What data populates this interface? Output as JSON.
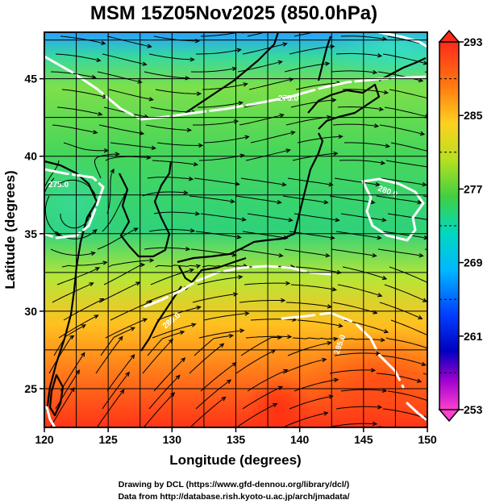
{
  "title": "MSM 15Z05Nov2025 (850.0hPa)",
  "x_label": "Longitude (degrees)",
  "y_label": "Latitude  (degrees)",
  "x_ticks": [
    "120",
    "125",
    "130",
    "135",
    "140",
    "145",
    "150"
  ],
  "y_ticks": [
    "25",
    "30",
    "35",
    "40",
    "45"
  ],
  "colorbar": {
    "ticks": [
      "293",
      "285",
      "277",
      "269",
      "261",
      "253"
    ],
    "min": 253,
    "max": 293
  },
  "contour_labels": [
    "285.0",
    "280.0",
    "280.0",
    "275.0",
    "275.0"
  ],
  "credits": {
    "line1": "Drawing by DCL (https://www.gfd-dennou.org/library/dcl/)",
    "line2": "Data from http://database.rish.kyoto-u.ac.jp/arch/jmadata/"
  },
  "chart_data": {
    "type": "heatmap",
    "variable": "temperature with wind streamlines",
    "xlim": [
      120,
      150
    ],
    "ylim": [
      22.5,
      48
    ],
    "grid": true,
    "colorbar_range": [
      253,
      293
    ],
    "colors": {
      "warm": "#ff3a1a",
      "mid": "#4dd25a",
      "cool": "#00d8e0",
      "cold": "#0020e0",
      "coldest": "#ff50c8"
    }
  }
}
